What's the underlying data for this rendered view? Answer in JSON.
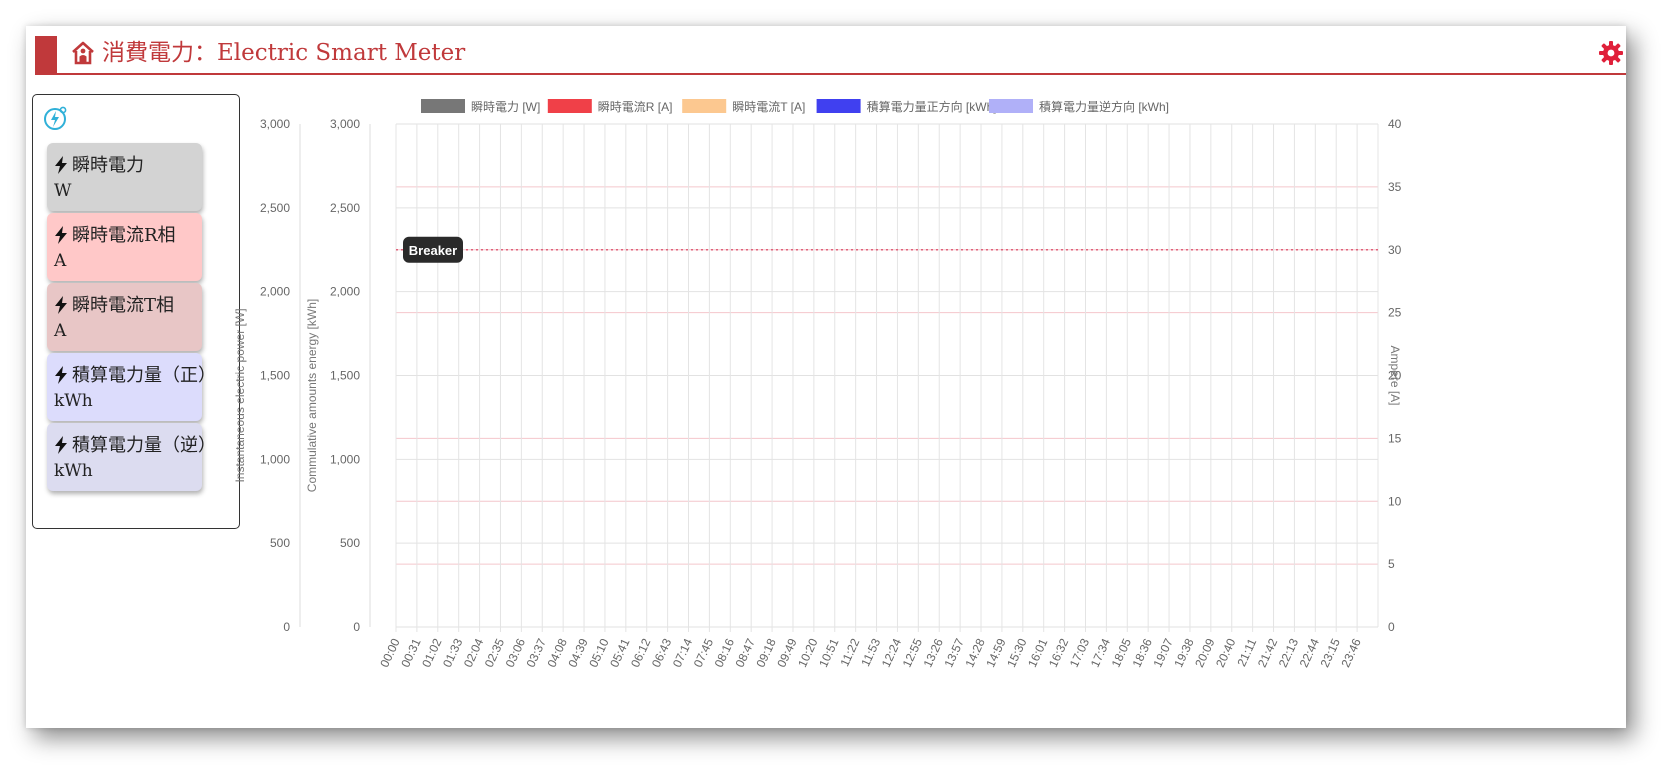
{
  "header": {
    "title": "消費電力：Electric Smart Meter",
    "icon": "home-person-icon",
    "settings_icon": "gear-icon",
    "accent_color": "#c0393b"
  },
  "sidebar": {
    "icon": "meter-bolt-icon",
    "cards": [
      {
        "label": "瞬時電力",
        "unit": "W",
        "color": "#d3d3d3"
      },
      {
        "label": "瞬時電流R相",
        "unit": "A",
        "color": "#ffc8c8"
      },
      {
        "label": "瞬時電流T相",
        "unit": "A",
        "color": "#e8c6c6"
      },
      {
        "label": "積算電力量（正）",
        "unit": "kWh",
        "color": "#dcdcfc"
      },
      {
        "label": "積算電力量（逆）",
        "unit": "kWh",
        "color": "#dcdcf0"
      }
    ]
  },
  "chart_data": {
    "type": "line",
    "legend_position": "top",
    "series": [
      {
        "name": "瞬時電力 [W]",
        "color": "#777777",
        "axis": "power",
        "values": []
      },
      {
        "name": "瞬時電流R [A]",
        "color": "#f04048",
        "axis": "ampere",
        "values": []
      },
      {
        "name": "瞬時電流T [A]",
        "color": "#fcc890",
        "axis": "ampere",
        "values": []
      },
      {
        "name": "積算電力量正方向 [kWh]",
        "color": "#4040f0",
        "axis": "energy",
        "values": []
      },
      {
        "name": "積算電力量逆方向 [kWh]",
        "color": "#b0b0f8",
        "axis": "energy",
        "values": []
      }
    ],
    "axes": {
      "power": {
        "label": "Instantaneous electric power [W]",
        "ylim": [
          0,
          3000
        ],
        "ticks": [
          "3,000",
          "2,500",
          "2,000",
          "1,500",
          "1,000",
          "500",
          "0"
        ]
      },
      "energy": {
        "label": "Commulative amounts energy [kWh]",
        "ylim": [
          0,
          3000
        ],
        "ticks": [
          "3,000",
          "2,500",
          "2,000",
          "1,500",
          "1,000",
          "500",
          "0"
        ]
      },
      "ampere": {
        "label": "Ampere [A]",
        "ylim": [
          0,
          40
        ],
        "ticks": [
          "40",
          "35",
          "30",
          "25",
          "20",
          "15",
          "10",
          "5",
          "0"
        ]
      }
    },
    "x_ticks": [
      "00:00",
      "00:31",
      "01:02",
      "01:33",
      "02:04",
      "02:35",
      "03:06",
      "03:37",
      "04:08",
      "04:39",
      "05:10",
      "05:41",
      "06:12",
      "06:43",
      "07:14",
      "07:45",
      "08:16",
      "08:47",
      "09:18",
      "09:49",
      "10:20",
      "10:51",
      "11:22",
      "11:53",
      "12:24",
      "12:55",
      "13:26",
      "13:57",
      "14:28",
      "14:59",
      "15:30",
      "16:01",
      "16:32",
      "17:03",
      "17:34",
      "18:05",
      "18:36",
      "19:07",
      "19:38",
      "20:09",
      "20:40",
      "21:11",
      "21:42",
      "22:13",
      "22:44",
      "23:15",
      "23:46"
    ],
    "annotation": {
      "label": "Breaker",
      "axis": "ampere",
      "value": 30,
      "color": "#e0607a"
    },
    "grid": true
  }
}
